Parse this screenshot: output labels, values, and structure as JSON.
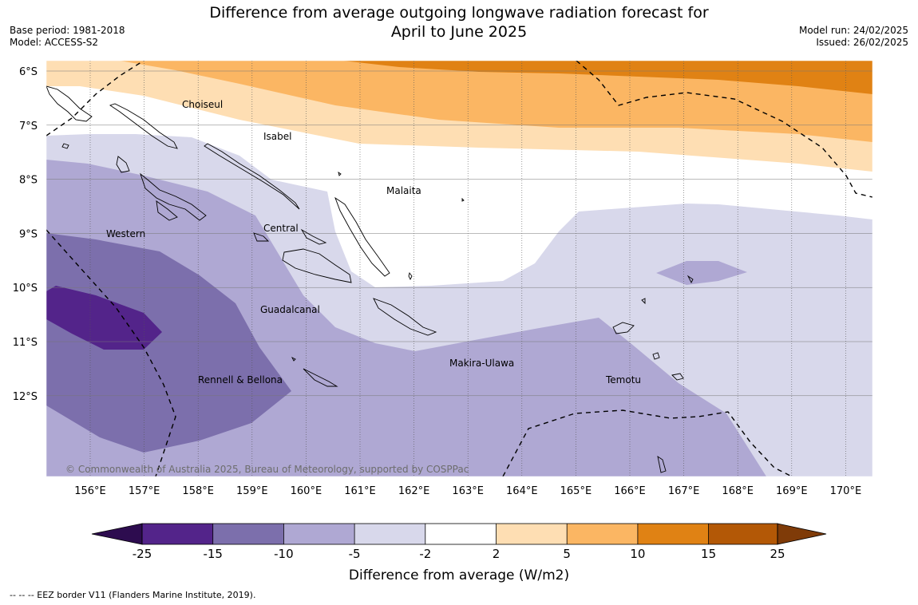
{
  "header": {
    "title_line1": "Difference from average outgoing longwave radiation forecast for",
    "title_line2": "April to June 2025",
    "base_period": "Base period: 1981-2018",
    "model": "Model: ACCESS-S2",
    "model_run": "Model run: 24/02/2025",
    "issued": "Issued: 26/02/2025"
  },
  "map": {
    "lon_ticks": [
      "156°E",
      "157°E",
      "158°E",
      "159°E",
      "160°E",
      "161°E",
      "162°E",
      "163°E",
      "164°E",
      "165°E",
      "166°E",
      "167°E",
      "168°E",
      "169°E",
      "170°E"
    ],
    "lat_ticks": [
      "6°S",
      "7°S",
      "8°S",
      "9°S",
      "10°S",
      "11°S",
      "12°S"
    ],
    "regions": [
      "Choiseul",
      "Isabel",
      "Malaita",
      "Western",
      "Central",
      "Guadalcanal",
      "Makira-Ulawa",
      "Rennell & Bellona",
      "Temotu"
    ],
    "copyright": "© Commonwealth of Australia 2025, Bureau of Meteorology, supported by COSPPac",
    "colors": {
      "minus25": "#2d0c4f",
      "minus15_25": "#53248a",
      "minus10_15": "#7c6fac",
      "minus5_10": "#afa8d3",
      "minus2_5": "#d8d8eb",
      "neutral": "#ffffff",
      "plus2_5": "#fedeb3",
      "plus5_10": "#fbb663",
      "plus10_15": "#e08214",
      "plus15_25": "#b35806",
      "plus25": "#7f3b08"
    }
  },
  "colorbar": {
    "ticks": [
      "-25",
      "-15",
      "-10",
      "-5",
      "-2",
      "2",
      "5",
      "10",
      "15",
      "25"
    ],
    "label": "Difference from average (W/m2)"
  },
  "footnote": "--  --  -- EEZ border V11 (Flanders Marine Institute, 2019)."
}
